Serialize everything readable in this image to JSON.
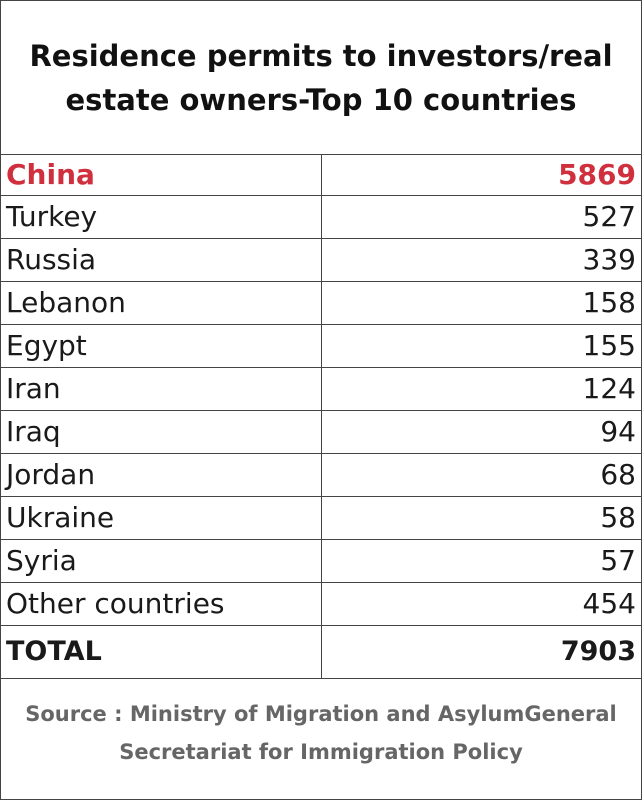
{
  "header": {
    "title": "Residence permits to investors/real estate owners-Top 10 countries"
  },
  "table": {
    "rows": [
      [
        "China",
        5869
      ],
      [
        "Turkey",
        527
      ],
      [
        "Russia",
        339
      ],
      [
        "Lebanon",
        158
      ],
      [
        "Egypt",
        155
      ],
      [
        "Iran",
        124
      ],
      [
        "Iraq",
        94
      ],
      [
        "Jordan",
        68
      ],
      [
        "Ukraine",
        58
      ],
      [
        "Syria",
        57
      ],
      [
        "Other countries",
        454
      ]
    ],
    "total": [
      "TOTAL",
      7903
    ]
  },
  "footer": {
    "source": "Source : Ministry of Migration and AsylumGeneral Secretariat for Immigration Policy"
  }
}
